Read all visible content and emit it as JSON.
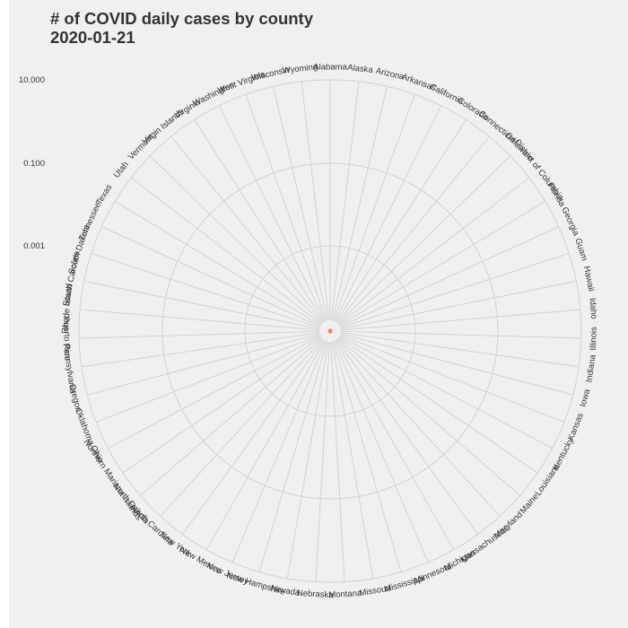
{
  "chart_data": {
    "type": "bar",
    "polar": true,
    "title_lines": [
      "# of COVID daily cases by county",
      "2020-01-21"
    ],
    "categories": [
      "Alabama",
      "Alaska",
      "Arizona",
      "Arkansas",
      "California",
      "Colorado",
      "Connecticut",
      "Delaware",
      "District of Columbia",
      "Florida",
      "Georgia",
      "Guam",
      "Hawaii",
      "Idaho",
      "Illinois",
      "Indiana",
      "Iowa",
      "Kansas",
      "Kentucky",
      "Louisiana",
      "Maine",
      "Maryland",
      "Massachusetts",
      "Michigan",
      "Minnesota",
      "Mississippi",
      "Missouri",
      "Montana",
      "Nebraska",
      "Nevada",
      "New Hampshire",
      "New Jersey",
      "New Mexico",
      "New York",
      "North Carolina",
      "North Dakota",
      "Northern Mariana Islands",
      "Ohio",
      "Oklahoma",
      "Oregon",
      "Pennsylvania",
      "Puerto Rico",
      "Rhode Island",
      "South Carolina",
      "South Dakota",
      "Tennessee",
      "Texas",
      "Utah",
      "Vermont",
      "Virgin Islands",
      "Virginia",
      "Washington",
      "West Virginia",
      "Wisconsin",
      "Wyoming"
    ],
    "y_scale": "log10",
    "y_ticks": [
      0.001,
      0.1,
      10
    ],
    "y_tick_labels": [
      "0.001",
      "0.100",
      "10.000"
    ],
    "points": [
      {
        "category": "Washington",
        "value": 1,
        "color": "#f8766d"
      }
    ],
    "grid": true,
    "legend": "none"
  }
}
